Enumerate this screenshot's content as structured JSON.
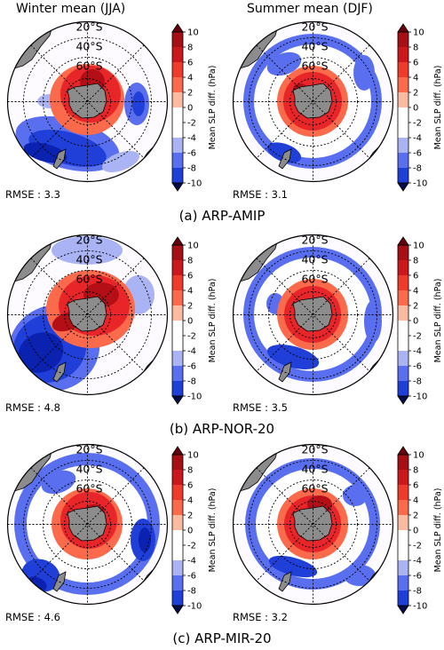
{
  "column_titles": [
    "Winter mean (JJA)",
    "Summer mean (DJF)"
  ],
  "rows": [
    {
      "caption": "(a) ARP-AMIP",
      "panels": [
        {
          "season": "JJA",
          "rmse": "RMSE : 3.3"
        },
        {
          "season": "DJF",
          "rmse": "RMSE : 3.1"
        }
      ]
    },
    {
      "caption": "(b) ARP-NOR-20",
      "panels": [
        {
          "season": "JJA",
          "rmse": "RMSE : 4.8"
        },
        {
          "season": "DJF",
          "rmse": "RMSE : 3.5"
        }
      ]
    },
    {
      "caption": "(c) ARP-MIR-20",
      "panels": [
        {
          "season": "JJA",
          "rmse": "RMSE : 4.6"
        },
        {
          "season": "DJF",
          "rmse": "RMSE : 3.2"
        }
      ]
    }
  ],
  "latitude_labels": [
    "20°S",
    "40°S",
    "60°S"
  ],
  "colorbar": {
    "label": "Mean SLP diff. (hPa)",
    "ticks": [
      "10",
      "8",
      "6",
      "4",
      "2",
      "0",
      "-2",
      "-4",
      "-6",
      "-8",
      "-10"
    ],
    "levels": [
      10,
      8,
      6,
      4,
      2,
      0,
      -2,
      -4,
      -6,
      -8,
      -10
    ],
    "colors": [
      "#67000d",
      "#a50f15",
      "#cb181d",
      "#ef3b2c",
      "#fb6a4a",
      "#fcbba1",
      "#ffffff",
      "#ffffff",
      "#9ecae1",
      "#4a6bf0",
      "#1f3fd8",
      "#0b22b0",
      "#061a7a",
      "#020d4a"
    ]
  },
  "chart_data": {
    "type": "heatmap",
    "description_fields": {
      "variable": "Mean SLP diff. (hPa)",
      "color_range": [
        -10,
        10
      ],
      "contour_interval": 2
    },
    "panels": [
      {
        "row": "(a) ARP-AMIP",
        "season": "Winter mean (JJA)",
        "rmse": 3.3
      },
      {
        "row": "(a) ARP-AMIP",
        "season": "Summer mean (DJF)",
        "rmse": 3.1
      },
      {
        "row": "(b) ARP-NOR-20",
        "season": "Winter mean (JJA)",
        "rmse": 4.8
      },
      {
        "row": "(b) ARP-NOR-20",
        "season": "Summer mean (DJF)",
        "rmse": 3.5
      },
      {
        "row": "(c) ARP-MIR-20",
        "season": "Winter mean (JJA)",
        "rmse": 4.6
      },
      {
        "row": "(c) ARP-MIR-20",
        "season": "Summer mean (DJF)",
        "rmse": 3.2
      }
    ]
  }
}
